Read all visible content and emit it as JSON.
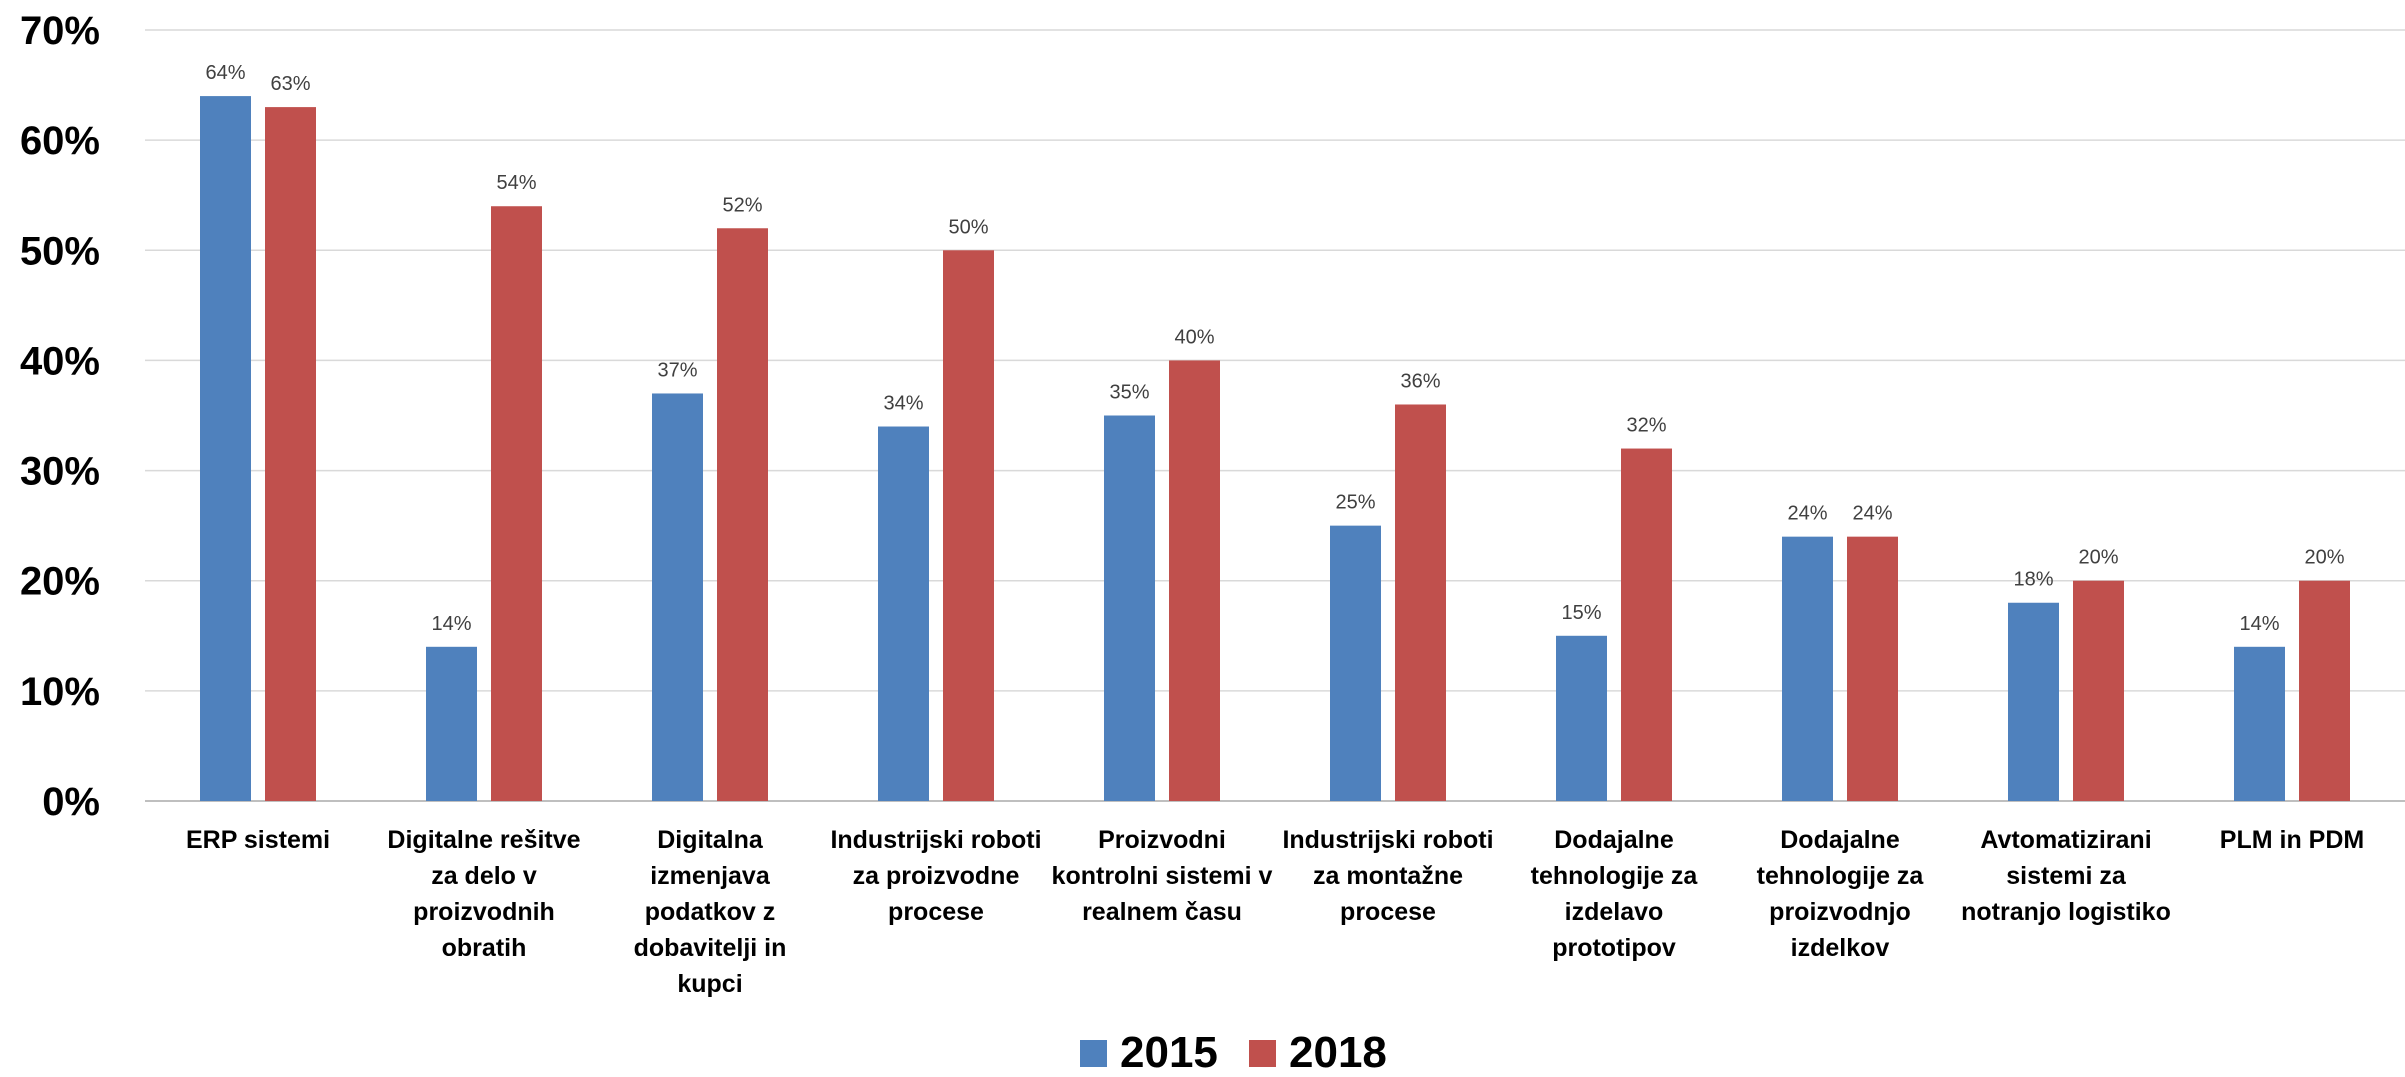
{
  "chart_data": {
    "type": "bar",
    "title": "",
    "xlabel": "",
    "ylabel": "",
    "ylim": [
      0,
      70
    ],
    "y_ticks": [
      "0%",
      "10%",
      "20%",
      "30%",
      "40%",
      "50%",
      "60%",
      "70%"
    ],
    "grid": true,
    "legend_position": "bottom",
    "categories": [
      [
        "ERP sistemi"
      ],
      [
        "Digitalne rešitve",
        "za delo v",
        "proizvodnih",
        "obratih"
      ],
      [
        "Digitalna",
        "izmenjava",
        "podatkov z",
        "dobavitelji in",
        "kupci"
      ],
      [
        "Industrijski roboti",
        "za proizvodne",
        "procese"
      ],
      [
        "Proizvodni",
        "kontrolni sistemi v",
        "realnem času"
      ],
      [
        "Industrijski roboti",
        "za montažne",
        "procese"
      ],
      [
        "Dodajalne",
        "tehnologije za",
        "izdelavo",
        "prototipov"
      ],
      [
        "Dodajalne",
        "tehnologije za",
        "proizvodnjo",
        "izdelkov"
      ],
      [
        "Avtomatizirani",
        "sistemi za",
        "notranjo logistiko"
      ],
      [
        "PLM in PDM"
      ]
    ],
    "series": [
      {
        "name": "2015",
        "color": "#4F81BD",
        "values": [
          64,
          14,
          37,
          34,
          35,
          25,
          15,
          24,
          18,
          14
        ],
        "labels": [
          "64%",
          "14%",
          "37%",
          "34%",
          "35%",
          "25%",
          "15%",
          "24%",
          "18%",
          "14%"
        ]
      },
      {
        "name": "2018",
        "color": "#C0504D",
        "values": [
          63,
          54,
          52,
          50,
          40,
          36,
          32,
          24,
          20,
          20
        ],
        "labels": [
          "63%",
          "54%",
          "52%",
          "50%",
          "40%",
          "36%",
          "32%",
          "24%",
          "20%",
          "20%"
        ]
      }
    ]
  }
}
